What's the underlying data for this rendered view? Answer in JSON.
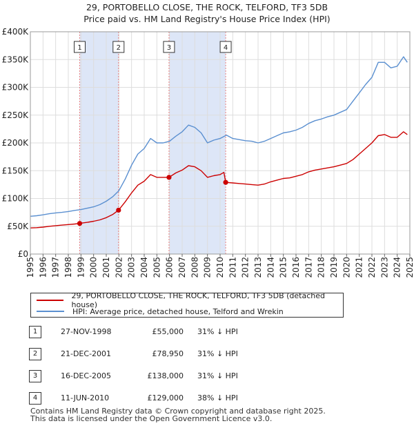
{
  "chart_title_line1": "29, PORTOBELLO CLOSE, THE ROCK, TELFORD, TF3 5DB",
  "chart_title_line2": "Price paid vs. HM Land Registry's House Price Index (HPI)",
  "colors": {
    "property": "#cc0000",
    "hpi": "#5a8fd0",
    "shade": "#dde6f7",
    "marker_line": "#e88080"
  },
  "legend": {
    "property_label": "29, PORTOBELLO CLOSE, THE ROCK, TELFORD, TF3 5DB (detached house)",
    "hpi_label": "HPI: Average price, detached house, Telford and Wrekin"
  },
  "transactions": [
    {
      "num": "1",
      "date": "27-NOV-1998",
      "price": "£55,000",
      "hpi_diff": "31% ↓ HPI"
    },
    {
      "num": "2",
      "date": "21-DEC-2001",
      "price": "£78,950",
      "hpi_diff": "31% ↓ HPI"
    },
    {
      "num": "3",
      "date": "16-DEC-2005",
      "price": "£138,000",
      "hpi_diff": "31% ↓ HPI"
    },
    {
      "num": "4",
      "date": "11-JUN-2010",
      "price": "£129,000",
      "hpi_diff": "38% ↓ HPI"
    }
  ],
  "footer_line1": "Contains HM Land Registry data © Crown copyright and database right 2025.",
  "footer_line2": "This data is licensed under the Open Government Licence v3.0.",
  "chart_data": {
    "type": "line",
    "title": "29, PORTOBELLO CLOSE, THE ROCK, TELFORD, TF3 5DB — Price paid vs. HM Land Registry's House Price Index (HPI)",
    "xlim": [
      1995,
      2025
    ],
    "ylim": [
      0,
      400000
    ],
    "x_ticks": [
      "1995",
      "1996",
      "1997",
      "1998",
      "1999",
      "2000",
      "2001",
      "2002",
      "2003",
      "2004",
      "2005",
      "2006",
      "2007",
      "2008",
      "2009",
      "2010",
      "2011",
      "2012",
      "2013",
      "2014",
      "2015",
      "2016",
      "2017",
      "2018",
      "2019",
      "2020",
      "2021",
      "2022",
      "2023",
      "2024",
      "2025"
    ],
    "y_ticks": [
      {
        "value": 0,
        "label": "£0"
      },
      {
        "value": 50000,
        "label": "£50K"
      },
      {
        "value": 100000,
        "label": "£100K"
      },
      {
        "value": 150000,
        "label": "£150K"
      },
      {
        "value": 200000,
        "label": "£200K"
      },
      {
        "value": 250000,
        "label": "£250K"
      },
      {
        "value": 300000,
        "label": "£300K"
      },
      {
        "value": 350000,
        "label": "£350K"
      },
      {
        "value": 400000,
        "label": "£400K"
      }
    ],
    "shaded_ranges": [
      [
        1998.9,
        2001.97
      ],
      [
        2005.96,
        2010.44
      ]
    ],
    "sales": [
      {
        "label": "1",
        "x": 1998.9,
        "y": 55000
      },
      {
        "label": "2",
        "x": 2001.97,
        "y": 78950
      },
      {
        "label": "3",
        "x": 2005.96,
        "y": 138000
      },
      {
        "label": "4",
        "x": 2010.44,
        "y": 129000
      }
    ],
    "series": [
      {
        "name": "HPI: Average price, detached house, Telford and Wrekin",
        "points": [
          [
            1995,
            68000
          ],
          [
            1995.5,
            69000
          ],
          [
            1996,
            70500
          ],
          [
            1996.5,
            72500
          ],
          [
            1997,
            74000
          ],
          [
            1997.5,
            75000
          ],
          [
            1998,
            76500
          ],
          [
            1998.5,
            78500
          ],
          [
            1999,
            80000
          ],
          [
            1999.5,
            82500
          ],
          [
            2000,
            85000
          ],
          [
            2000.5,
            89000
          ],
          [
            2001,
            95000
          ],
          [
            2001.5,
            103000
          ],
          [
            2002,
            114000
          ],
          [
            2002.5,
            135000
          ],
          [
            2003,
            160000
          ],
          [
            2003.5,
            180000
          ],
          [
            2004,
            190000
          ],
          [
            2004.5,
            208000
          ],
          [
            2005,
            200000
          ],
          [
            2005.5,
            200000
          ],
          [
            2006,
            203000
          ],
          [
            2006.5,
            212000
          ],
          [
            2007,
            220000
          ],
          [
            2007.5,
            232000
          ],
          [
            2008,
            228000
          ],
          [
            2008.5,
            218000
          ],
          [
            2009,
            200000
          ],
          [
            2009.5,
            205000
          ],
          [
            2010,
            208000
          ],
          [
            2010.5,
            214000
          ],
          [
            2011,
            208000
          ],
          [
            2011.5,
            206000
          ],
          [
            2012,
            204000
          ],
          [
            2012.5,
            203000
          ],
          [
            2013,
            200000
          ],
          [
            2013.5,
            203000
          ],
          [
            2014,
            208000
          ],
          [
            2014.5,
            213000
          ],
          [
            2015,
            218000
          ],
          [
            2015.5,
            220000
          ],
          [
            2016,
            223000
          ],
          [
            2016.5,
            228000
          ],
          [
            2017,
            235000
          ],
          [
            2017.5,
            240000
          ],
          [
            2018,
            243000
          ],
          [
            2018.5,
            247000
          ],
          [
            2019,
            250000
          ],
          [
            2019.5,
            255000
          ],
          [
            2020,
            260000
          ],
          [
            2020.5,
            275000
          ],
          [
            2021,
            290000
          ],
          [
            2021.5,
            305000
          ],
          [
            2022,
            318000
          ],
          [
            2022.5,
            345000
          ],
          [
            2023,
            345000
          ],
          [
            2023.5,
            335000
          ],
          [
            2024,
            338000
          ],
          [
            2024.5,
            355000
          ],
          [
            2024.8,
            345000
          ]
        ]
      },
      {
        "name": "29, PORTOBELLO CLOSE, THE ROCK, TELFORD, TF3 5DB (detached house)",
        "points": [
          [
            1995,
            47000
          ],
          [
            1995.5,
            47500
          ],
          [
            1996,
            48500
          ],
          [
            1996.5,
            50000
          ],
          [
            1997,
            51000
          ],
          [
            1997.5,
            52000
          ],
          [
            1998,
            53000
          ],
          [
            1998.5,
            54000
          ],
          [
            1998.9,
            55000
          ],
          [
            1999,
            55500
          ],
          [
            1999.5,
            57000
          ],
          [
            2000,
            59000
          ],
          [
            2000.5,
            61500
          ],
          [
            2001,
            65500
          ],
          [
            2001.5,
            71000
          ],
          [
            2001.97,
            78950
          ],
          [
            2002.5,
            94000
          ],
          [
            2003,
            110000
          ],
          [
            2003.5,
            124000
          ],
          [
            2004,
            131000
          ],
          [
            2004.5,
            143000
          ],
          [
            2005,
            138000
          ],
          [
            2005.5,
            138000
          ],
          [
            2005.96,
            138000
          ],
          [
            2006.5,
            146000
          ],
          [
            2007,
            151000
          ],
          [
            2007.5,
            159000
          ],
          [
            2008,
            157000
          ],
          [
            2008.5,
            150000
          ],
          [
            2009,
            138000
          ],
          [
            2009.5,
            141000
          ],
          [
            2010,
            143000
          ],
          [
            2010.3,
            147000
          ],
          [
            2010.44,
            129000
          ],
          [
            2011,
            128000
          ],
          [
            2011.5,
            127000
          ],
          [
            2012,
            126000
          ],
          [
            2012.5,
            125000
          ],
          [
            2013,
            124000
          ],
          [
            2013.5,
            126000
          ],
          [
            2014,
            130000
          ],
          [
            2014.5,
            133000
          ],
          [
            2015,
            136000
          ],
          [
            2015.5,
            137000
          ],
          [
            2016,
            140000
          ],
          [
            2016.5,
            143000
          ],
          [
            2017,
            148000
          ],
          [
            2017.5,
            151000
          ],
          [
            2018,
            153000
          ],
          [
            2018.5,
            155000
          ],
          [
            2019,
            157000
          ],
          [
            2019.5,
            160000
          ],
          [
            2020,
            163000
          ],
          [
            2020.5,
            170000
          ],
          [
            2021,
            180000
          ],
          [
            2021.5,
            190000
          ],
          [
            2022,
            200000
          ],
          [
            2022.5,
            213000
          ],
          [
            2023,
            215000
          ],
          [
            2023.5,
            210000
          ],
          [
            2024,
            210000
          ],
          [
            2024.5,
            220000
          ],
          [
            2024.8,
            215000
          ]
        ]
      }
    ]
  }
}
